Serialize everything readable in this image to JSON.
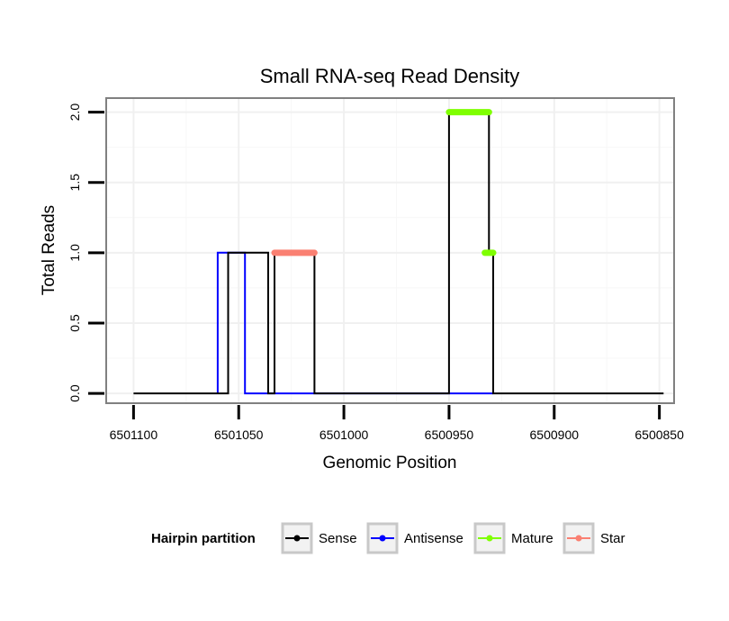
{
  "chart_data": {
    "type": "line",
    "title": "Small RNA-seq Read Density",
    "xlabel": "Genomic Position",
    "ylabel": "Total Reads",
    "x_reversed": true,
    "xlim": [
      6501113,
      6500843
    ],
    "ylim": [
      -0.07,
      2.1
    ],
    "x_ticks": [
      6501100,
      6501050,
      6501000,
      6500950,
      6500900,
      6500850
    ],
    "x_tick_labels": [
      "6501100",
      "6501050",
      "6501000",
      "6500950",
      "6500900",
      "6500850"
    ],
    "y_ticks": [
      0.0,
      0.5,
      1.0,
      1.5,
      2.0
    ],
    "y_tick_labels": [
      "0.0",
      "0.5",
      "1.0",
      "1.5",
      "2.0"
    ],
    "grid": true,
    "legend": {
      "title": "Hairpin partition",
      "placement": "bottom",
      "entries": [
        {
          "name": "Sense",
          "color": "#000000"
        },
        {
          "name": "Antisense",
          "color": "#0000ff"
        },
        {
          "name": "Mature",
          "color": "#7fff00"
        },
        {
          "name": "Star",
          "color": "#fa8072"
        }
      ]
    },
    "series": [
      {
        "name": "Sense",
        "color": "#000000",
        "width": 2,
        "points": [
          [
            6501100,
            0
          ],
          [
            6501055,
            0
          ],
          [
            6501055,
            1
          ],
          [
            6501036,
            1
          ],
          [
            6501036,
            0
          ],
          [
            6501033,
            0
          ],
          [
            6501033,
            1
          ],
          [
            6501014,
            1
          ],
          [
            6501014,
            0
          ],
          [
            6500950,
            0
          ],
          [
            6500950,
            2
          ],
          [
            6500931,
            2
          ],
          [
            6500931,
            1
          ],
          [
            6500929,
            1
          ],
          [
            6500929,
            0
          ],
          [
            6500848,
            0
          ]
        ]
      },
      {
        "name": "Antisense",
        "color": "#0000ff",
        "width": 2,
        "points": [
          [
            6501060,
            0
          ],
          [
            6501060,
            1
          ],
          [
            6501047,
            1
          ],
          [
            6501047,
            0
          ],
          [
            6500929,
            0
          ]
        ]
      },
      {
        "name": "Mature",
        "color": "#7fff00",
        "width": 7,
        "segments": [
          [
            [
              6500950,
              2
            ],
            [
              6500931,
              2
            ]
          ],
          [
            [
              6500933,
              1
            ],
            [
              6500929,
              1
            ]
          ]
        ]
      },
      {
        "name": "Star",
        "color": "#fa8072",
        "width": 7,
        "segments": [
          [
            [
              6501033,
              1
            ],
            [
              6501014,
              1
            ]
          ]
        ]
      }
    ]
  }
}
